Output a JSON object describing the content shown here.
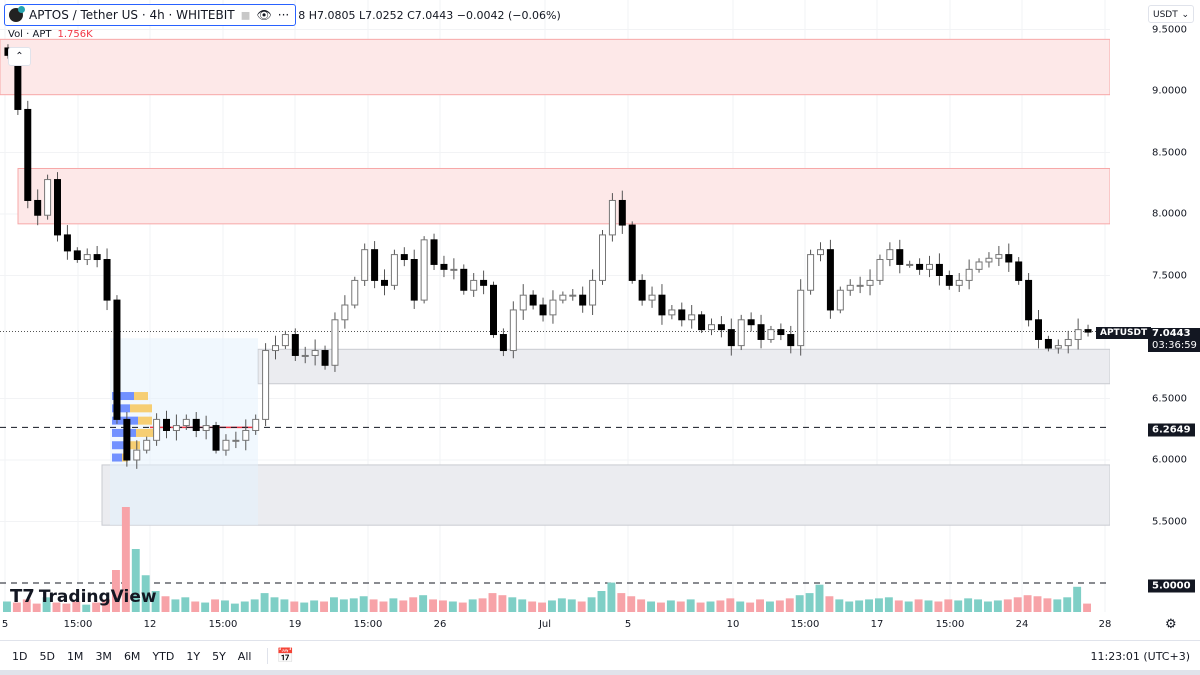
{
  "header": {
    "symbol_title": "APTOS / Tether US · 4h · WHITEBIT",
    "ohlc_text": "8 H7.0805 L7.0252 C7.0443 −0.0042 (−0.06%)",
    "volume_label": "Vol · APT",
    "volume_value": "1.756K",
    "currency_select": "USDT"
  },
  "price_axis": [
    "9.5000",
    "9.0000",
    "8.5000",
    "8.0000",
    "7.5000",
    "6.5000",
    "6.0000",
    "5.5000"
  ],
  "tags": {
    "symbol": "APTUSDT",
    "last_price": "7.0443",
    "countdown": "03:36:59",
    "level_1": "6.2649",
    "level_2": "5.0000"
  },
  "time_axis": [
    "5",
    "15:00",
    "12",
    "15:00",
    "19",
    "15:00",
    "26",
    "Jul",
    "5",
    "10",
    "15:00",
    "17",
    "15:00",
    "24",
    "28"
  ],
  "bottom_bar": {
    "ranges": [
      "1D",
      "5D",
      "1M",
      "3M",
      "6M",
      "YTD",
      "1Y",
      "5Y",
      "All"
    ],
    "clock": "11:23:01 (UTC+3)"
  },
  "branding": "TradingView",
  "colors": {
    "up": "#ffffff",
    "down": "#000000",
    "vol_up": "#7fcfc6",
    "vol_down": "#f7a3a8",
    "supply_zone": "#fde8e8",
    "demand_zone": "#ebecf0",
    "accent": "#2962ff"
  },
  "chart_data": {
    "type": "candlestick",
    "symbol": "APTUSDT",
    "interval": "4h",
    "ylim": [
      4.8,
      9.55
    ],
    "closes": [
      9.29,
      8.85,
      8.11,
      7.99,
      8.28,
      7.83,
      7.7,
      7.63,
      7.67,
      7.63,
      7.3,
      6.33,
      6.0,
      6.08,
      6.16,
      6.33,
      6.24,
      6.28,
      6.33,
      6.24,
      6.28,
      6.08,
      6.16,
      6.16,
      6.24,
      6.33,
      6.89,
      6.93,
      7.02,
      6.85,
      6.85,
      6.89,
      6.77,
      7.14,
      7.26,
      7.46,
      7.71,
      7.46,
      7.42,
      7.67,
      7.63,
      7.3,
      7.79,
      7.59,
      7.55,
      7.55,
      7.38,
      7.46,
      7.42,
      7.02,
      6.89,
      7.22,
      7.34,
      7.26,
      7.18,
      7.3,
      7.34,
      7.34,
      7.26,
      7.46,
      7.83,
      8.11,
      7.91,
      7.46,
      7.3,
      7.34,
      7.18,
      7.22,
      7.14,
      7.18,
      7.06,
      7.1,
      7.06,
      6.93,
      7.14,
      7.1,
      6.98,
      7.06,
      7.02,
      6.93,
      7.38,
      7.67,
      7.71,
      7.22,
      7.38,
      7.42,
      7.42,
      7.46,
      7.63,
      7.71,
      7.59,
      7.59,
      7.55,
      7.59,
      7.5,
      7.42,
      7.46,
      7.55,
      7.61,
      7.64,
      7.67,
      7.61,
      7.46,
      7.14,
      6.98,
      6.91,
      6.93,
      6.98,
      7.06,
      7.04
    ],
    "volume_relative": [
      10,
      9,
      12,
      8,
      14,
      9,
      8,
      10,
      7,
      9,
      12,
      40,
      100,
      60,
      35,
      20,
      15,
      12,
      14,
      10,
      9,
      12,
      11,
      8,
      10,
      12,
      18,
      14,
      12,
      10,
      9,
      11,
      10,
      14,
      12,
      13,
      15,
      12,
      10,
      13,
      11,
      14,
      16,
      12,
      11,
      10,
      9,
      12,
      13,
      18,
      16,
      14,
      12,
      10,
      9,
      11,
      13,
      12,
      10,
      14,
      20,
      28,
      18,
      15,
      12,
      10,
      9,
      11,
      10,
      12,
      9,
      10,
      11,
      13,
      10,
      9,
      12,
      10,
      11,
      13,
      16,
      18,
      26,
      15,
      12,
      10,
      11,
      12,
      13,
      14,
      11,
      10,
      12,
      11,
      10,
      12,
      11,
      13,
      12,
      10,
      11,
      12,
      14,
      16,
      15,
      13,
      12,
      14,
      24,
      8
    ],
    "zones": [
      {
        "kind": "supply",
        "price_from": 8.97,
        "price_to": 9.42
      },
      {
        "kind": "supply",
        "price_from": 7.92,
        "price_to": 8.37
      },
      {
        "kind": "demand",
        "price_from": 6.62,
        "price_to": 6.9
      },
      {
        "kind": "demand",
        "price_from": 5.47,
        "price_to": 5.96
      }
    ],
    "horizontal_levels": [
      6.2649,
      5.0
    ],
    "last_price": 7.0443,
    "grid": true
  }
}
